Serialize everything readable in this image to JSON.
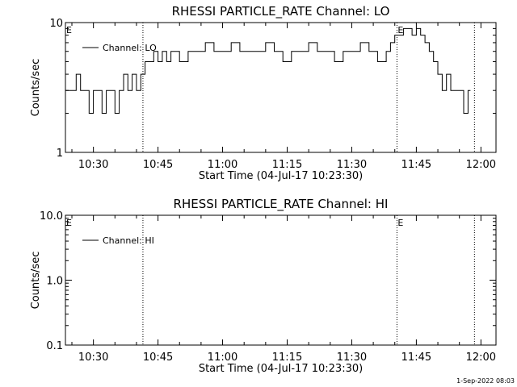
{
  "chart_data": [
    {
      "type": "line",
      "title": "RHESSI PARTICLE_RATE Channel: LO",
      "xlabel": "Start Time (04-Jul-17 10:23:30)",
      "ylabel": "Counts/sec",
      "yscale": "log",
      "ylim": [
        1,
        10
      ],
      "xlim": [
        "10:23:30",
        "12:03:30"
      ],
      "xticks": [
        "10:30",
        "10:45",
        "11:00",
        "11:15",
        "11:30",
        "11:45",
        "12:00"
      ],
      "yticks": [
        "1",
        "10"
      ],
      "legend": "top-left",
      "series": [
        {
          "name": "Channel: LO",
          "x": [
            "10:23:30",
            "10:25:00",
            "10:26:00",
            "10:27:00",
            "10:28:00",
            "10:29:00",
            "10:30:00",
            "10:31:00",
            "10:32:00",
            "10:33:00",
            "10:34:00",
            "10:35:00",
            "10:36:00",
            "10:37:00",
            "10:38:00",
            "10:39:00",
            "10:40:00",
            "10:41:00",
            "10:42:00",
            "10:43:00",
            "10:44:00",
            "10:45:00",
            "10:46:00",
            "10:47:00",
            "10:48:00",
            "10:49:00",
            "10:50:00",
            "10:52:00",
            "10:54:00",
            "10:56:00",
            "10:58:00",
            "11:00:00",
            "11:02:00",
            "11:04:00",
            "11:06:00",
            "11:08:00",
            "11:10:00",
            "11:12:00",
            "11:14:00",
            "11:16:00",
            "11:18:00",
            "11:20:00",
            "11:22:00",
            "11:24:00",
            "11:26:00",
            "11:28:00",
            "11:30:00",
            "11:32:00",
            "11:34:00",
            "11:36:00",
            "11:38:00",
            "11:39:00",
            "11:40:00",
            "11:41:00",
            "11:42:00",
            "11:43:00",
            "11:44:00",
            "11:45:00",
            "11:46:00",
            "11:47:00",
            "11:48:00",
            "11:49:00",
            "11:50:00",
            "11:51:00",
            "11:52:00",
            "11:53:00",
            "11:54:00",
            "11:55:00",
            "11:56:00",
            "11:57:00"
          ],
          "y": [
            3,
            3,
            4,
            3,
            3,
            2,
            3,
            3,
            2,
            3,
            3,
            2,
            3,
            4,
            3,
            4,
            3,
            4,
            5,
            5,
            6,
            5,
            6,
            5,
            6,
            6,
            5,
            6,
            6,
            7,
            6,
            6,
            7,
            6,
            6,
            6,
            7,
            6,
            5,
            6,
            6,
            7,
            6,
            6,
            5,
            6,
            6,
            7,
            6,
            5,
            6,
            7,
            8,
            8,
            9,
            9,
            8,
            9,
            8,
            7,
            6,
            5,
            4,
            3,
            4,
            3,
            3,
            3,
            2,
            3
          ]
        }
      ],
      "annotations": [
        "E",
        "E"
      ]
    },
    {
      "type": "line",
      "title": "RHESSI PARTICLE_RATE Channel: HI",
      "xlabel": "Start Time (04-Jul-17 10:23:30)",
      "ylabel": "Counts/sec",
      "yscale": "log",
      "ylim": [
        0.1,
        10
      ],
      "xlim": [
        "10:23:30",
        "12:03:30"
      ],
      "xticks": [
        "10:30",
        "10:45",
        "11:00",
        "11:15",
        "11:30",
        "11:45",
        "12:00"
      ],
      "yticks": [
        "0.1",
        "1.0",
        "10.0"
      ],
      "legend": "top-left",
      "series": [
        {
          "name": "Channel: HI",
          "x": [],
          "y": []
        }
      ],
      "annotations": [
        "E",
        "E"
      ]
    }
  ],
  "vlines": [
    "10:41:30",
    "11:40:30",
    "11:58:30"
  ],
  "timestamp": "1-Sep-2022 08:03"
}
